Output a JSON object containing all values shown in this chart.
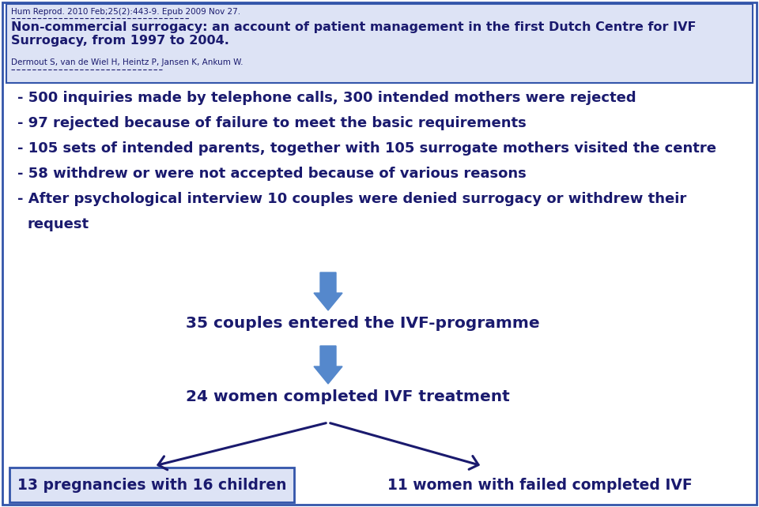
{
  "bg_color": "#ffffff",
  "text_color": "#1a1a6e",
  "header_box_color": "#dde3f5",
  "header_border_color": "#3355aa",
  "arrow_color": "#5588cc",
  "arrow_dark": "#1a1a6e",
  "header_citation": "Hum Reprod. 2010 Feb;25(2):443-9. Epub 2009 Nov 27.",
  "header_title": "Non-commercial surrogacy: an account of patient management in the first Dutch Centre for IVF Surrogacy, from 1997 to 2004.",
  "header_authors": "Dermout S, van de Wiel H, Heintz P, Jansen K, Ankum W.",
  "bullet_lines": [
    "- 500 inquiries made by telephone calls, 300 intended mothers were rejected",
    "- 97 rejected because of failure to meet the basic requirements",
    "- 105 sets of intended parents, together with 105 surrogate mothers visited the centre",
    "- 58 withdrew or were not accepted because of various reasons",
    "- After psychological interview 10 couples were denied surrogacy or withdrew their",
    "  request"
  ],
  "flow_text1": "35 couples entered the IVF-programme",
  "flow_text2": "24 women completed IVF treatment",
  "flow_box1": "13 pregnancies with 16 children",
  "flow_box2": "11 women with failed completed IVF",
  "figsize": [
    9.6,
    6.42
  ],
  "dpi": 100
}
